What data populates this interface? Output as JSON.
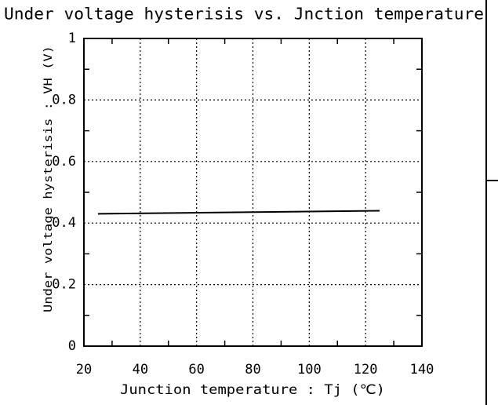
{
  "chart_data": {
    "type": "line",
    "title": "Under voltage hysterisis vs. Jnction temperature",
    "x_label": "Junction temperature : Tj (℃)",
    "y_label": "Under voltage hysterisis : VH (V)",
    "x": [
      25,
      125
    ],
    "series": [
      {
        "color": "#000000",
        "values": [
          0.43,
          0.44
        ]
      }
    ],
    "xlim": [
      20,
      140
    ],
    "xticks": [
      20,
      40,
      60,
      80,
      100,
      120,
      140
    ],
    "xminorticks": [
      30,
      50,
      70,
      90,
      110,
      130
    ],
    "ylim": [
      0,
      1
    ],
    "yticks": [
      0,
      0.2,
      0.4,
      0.6,
      0.8,
      1
    ],
    "yminorticks": [
      0.1,
      0.3,
      0.5,
      0.7,
      0.9
    ],
    "grid": true
  }
}
